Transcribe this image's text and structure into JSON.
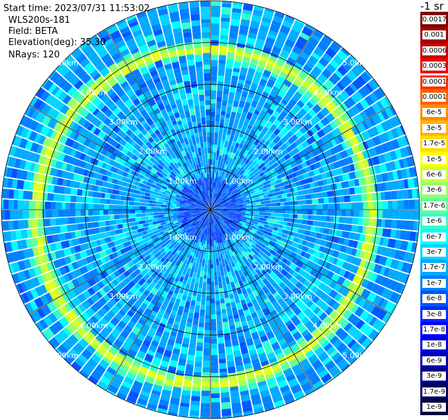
{
  "info": {
    "start_time": "Start time: 2023/07/31 11:53:02",
    "instrument": "WLS200s-181",
    "field": "Field: BETA",
    "elevation": "Elevation(deg): 35.30",
    "nrays": "NRays: 120"
  },
  "colorbar": {
    "unit_label": "-1 sr",
    "labels": [
      "0.0017",
      "0.001",
      "0.0006",
      "0.0003",
      "0.00017",
      "0.0001",
      "6e-5",
      "3e-5",
      "1.7e-5",
      "1e-5",
      "6e-6",
      "3e-6",
      "1.7e-6",
      "1e-6",
      "6e-7",
      "3e-7",
      "1.7e-7",
      "1e-7",
      "6e-8",
      "3e-8",
      "1.7e-8",
      "1e-8",
      "6e-9",
      "3e-9",
      "1.7e-9",
      "1e-9"
    ],
    "colors": [
      "#800000",
      "#a40000",
      "#c80000",
      "#f00000",
      "#ff3000",
      "#ff6000",
      "#ff8c00",
      "#ffb400",
      "#ffdc00",
      "#ffff00",
      "#ccff33",
      "#99ff66",
      "#66ff99",
      "#33ffcc",
      "#00ffff",
      "#00d4ff",
      "#00aaff",
      "#0080ff",
      "#0055ff",
      "#002aff",
      "#0000ff",
      "#0000d8",
      "#0000b0",
      "#000088",
      "#000060",
      "#000040"
    ]
  },
  "chart_data": {
    "type": "heatmap",
    "projection": "polar-ppi",
    "max_range_km": 5.0,
    "range_rings_km": [
      1,
      2,
      3,
      4,
      5
    ],
    "ring_labels": [
      "1.00km",
      "2.00km",
      "3.00km",
      "4.00km",
      "5.00km"
    ],
    "rays": 120,
    "spoke_angles_deg": [
      0,
      30,
      60,
      90,
      120,
      150
    ],
    "feature_ring_km": 4.0,
    "feature_ring_center_offset_km": [
      -0.16,
      -0.16
    ],
    "feature_ring_value": "1.7e-5",
    "background_value": "6e-8",
    "near_center_value": "3e-8",
    "gridlines": true
  }
}
